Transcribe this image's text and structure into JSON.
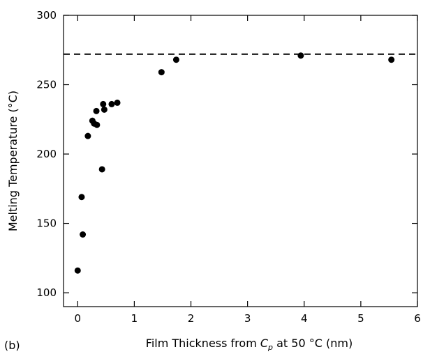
{
  "panel_label": "(b)",
  "chart_data": {
    "type": "scatter",
    "title": "",
    "xlabel_pre": "Film Thickness from ",
    "xlabel_var": "C",
    "xlabel_sub": "p",
    "xlabel_post": " at 50 °C (nm)",
    "ylabel": "Melting Temperature (°C)",
    "xlim": [
      -0.25,
      6
    ],
    "ylim": [
      90,
      300
    ],
    "xticks": [
      0,
      1,
      2,
      3,
      4,
      5,
      6
    ],
    "yticks": [
      100,
      150,
      200,
      250,
      300
    ],
    "grid": false,
    "reference_line": {
      "y": 272,
      "style": "dashed"
    },
    "series": [
      {
        "points": [
          {
            "x": 0.0,
            "y": 116
          },
          {
            "x": 0.07,
            "y": 169
          },
          {
            "x": 0.09,
            "y": 142
          },
          {
            "x": 0.18,
            "y": 213
          },
          {
            "x": 0.26,
            "y": 224
          },
          {
            "x": 0.29,
            "y": 222
          },
          {
            "x": 0.33,
            "y": 231
          },
          {
            "x": 0.34,
            "y": 221
          },
          {
            "x": 0.43,
            "y": 189
          },
          {
            "x": 0.45,
            "y": 236
          },
          {
            "x": 0.47,
            "y": 232
          },
          {
            "x": 0.6,
            "y": 236
          },
          {
            "x": 0.7,
            "y": 237
          },
          {
            "x": 1.48,
            "y": 259
          },
          {
            "x": 1.74,
            "y": 268
          },
          {
            "x": 3.94,
            "y": 271
          },
          {
            "x": 5.54,
            "y": 268
          }
        ]
      }
    ]
  }
}
